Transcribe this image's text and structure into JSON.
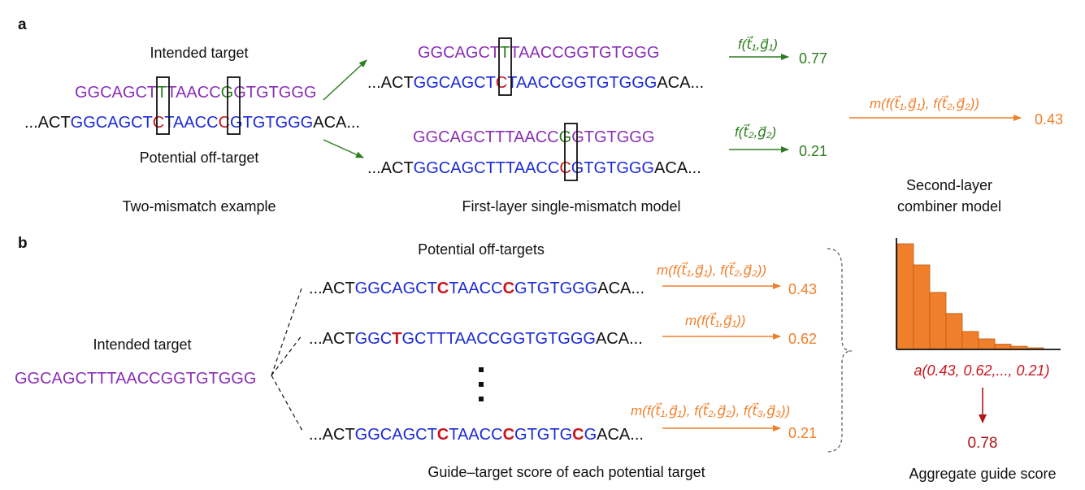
{
  "colors": {
    "purple": "#8b2fb5",
    "blue": "#1c2bd6",
    "red": "#c8161d",
    "green": "#2d7d1e",
    "orange": "#f07f2a",
    "dark_red": "#b01818",
    "black": "#111111",
    "bar_fill": "#ef7f2a",
    "bar_stroke": "#c45a10"
  },
  "panel_a": {
    "label": "a",
    "intended_label": "Intended target",
    "guide_seq": [
      "GGCAGCT",
      "T",
      "TAACC",
      "G",
      "GTGTGGG"
    ],
    "target_seq": [
      "...ACT",
      "GGCAGCT",
      "C",
      "TAACC",
      "C",
      "GTGTGGG",
      "ACA..."
    ],
    "offtarget_label": "Potential off-target",
    "caption_left": "Two-mismatch example",
    "model1": {
      "guide_seq": [
        "GGCAGCT",
        "T",
        "TAACCGGTGTGGG"
      ],
      "target_seq": [
        "...ACT",
        "GGCAGCT",
        "C",
        "TAACCGGTGTGGG",
        "ACA..."
      ],
      "fn_label": "f(t⃗₁,g⃗₁)",
      "score": "0.77"
    },
    "model2": {
      "guide_seq": [
        "GGCAGCTTTAACC",
        "G",
        "GTGTGGG"
      ],
      "target_seq": [
        "...ACT",
        "GGCAGCTTTAACC",
        "C",
        "GTGTGGG",
        "ACA..."
      ],
      "fn_label": "f(t⃗₂,g⃗₂)",
      "score": "0.21"
    },
    "caption_middle": "First-layer single-mismatch model",
    "combiner_label": "m(f(t⃗₁,g⃗₁), f(t⃗₂,g⃗₂))",
    "combined_score": "0.43",
    "caption_right": [
      "Second-layer",
      "combiner model"
    ]
  },
  "panel_b": {
    "label": "b",
    "header": "Potential off-targets",
    "intended_label": "Intended target",
    "guide_seq": "GGCAGCTTTAACCGGTGTGGG",
    "rows": [
      {
        "segments": [
          [
            "...ACT",
            "black"
          ],
          [
            "GGCAGCT",
            "blue"
          ],
          [
            "C",
            "red"
          ],
          [
            "TAACC",
            "blue"
          ],
          [
            "C",
            "red"
          ],
          [
            "GTGTGGG",
            "blue"
          ],
          [
            "ACA...",
            "black"
          ]
        ],
        "fn_label": "m(f(t⃗₁,g⃗₁), f(t⃗₂,g⃗₂))",
        "score": "0.43"
      },
      {
        "segments": [
          [
            "...ACT",
            "black"
          ],
          [
            "GGC",
            "blue"
          ],
          [
            "T",
            "red"
          ],
          [
            "GCTTTAACCGGTGTGGG",
            "blue"
          ],
          [
            "ACA...",
            "black"
          ]
        ],
        "fn_label": "m(f(t⃗₁,g⃗₁))",
        "score": "0.62"
      },
      {
        "segments": [
          [
            "...ACT",
            "black"
          ],
          [
            "GGCAGCT",
            "blue"
          ],
          [
            "C",
            "red"
          ],
          [
            "TAACC",
            "blue"
          ],
          [
            "C",
            "red"
          ],
          [
            "GTGTG",
            "blue"
          ],
          [
            "C",
            "red"
          ],
          [
            "G",
            "blue"
          ],
          [
            "ACA...",
            "black"
          ]
        ],
        "fn_label": "m(f(t⃗₁,g⃗₁), f(t⃗₂,g⃗₂), f(t⃗₃,g⃗₃))",
        "score": "0.21"
      }
    ],
    "caption_middle": "Guide–target score of each potential target",
    "histogram_values": [
      1.0,
      0.8,
      0.54,
      0.34,
      0.17,
      0.1,
      0.05,
      0.03,
      0.015
    ],
    "aggregate_fn": "a(0.43, 0.62,..., 0.21)",
    "aggregate_score": "0.78",
    "caption_right": "Aggregate guide score"
  }
}
